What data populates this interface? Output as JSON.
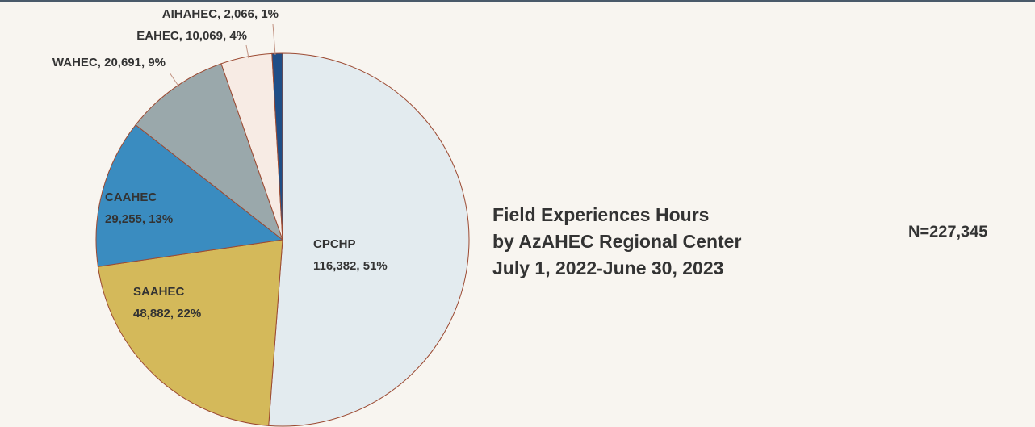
{
  "chart_data": {
    "type": "pie",
    "title": [
      "Field Experiences Hours",
      "by AzAHEC Regional Center",
      "July 1, 2022-June 30, 2023"
    ],
    "annotation": "N=227,345",
    "categories": [
      "CPCHP",
      "SAAHEC",
      "CAAHEC",
      "WAHEC",
      "EAHEC",
      "AIHAHEC"
    ],
    "values": [
      116382,
      48882,
      29255,
      20691,
      10069,
      2066
    ],
    "value_labels": [
      "116,382, 51%",
      "48,882, 22%",
      "29,255, 13%",
      ", 20,691, 9%",
      ", 10,069, 4%",
      ", 2,066, 1%"
    ],
    "colors": [
      "#e3ebef",
      "#d4b95a",
      "#3a8cc0",
      "#9aa8ab",
      "#f7ebe4",
      "#1f4e87"
    ]
  }
}
